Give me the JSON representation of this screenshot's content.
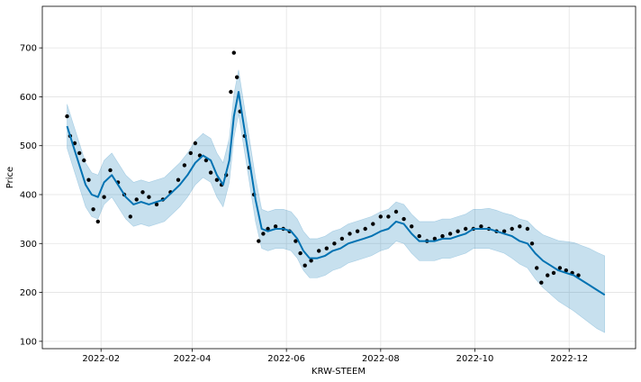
{
  "chart_data": {
    "type": "line",
    "title": "",
    "xlabel": "KRW-STEEM",
    "ylabel": "Price",
    "x_tick_labels": [
      "2022-02",
      "2022-04",
      "2022-06",
      "2022-08",
      "2022-10",
      "2022-12"
    ],
    "x_ticks": [
      "2022-02-01",
      "2022-04-01",
      "2022-06-01",
      "2022-08-01",
      "2022-10-01",
      "2022-12-01"
    ],
    "xlim": [
      "2021-12-25",
      "2023-01-13"
    ],
    "y_ticks": [
      100,
      200,
      300,
      400,
      500,
      600,
      700
    ],
    "ylim": [
      85,
      785
    ],
    "grid": true,
    "colors": {
      "forecast": "#0072B2",
      "band": "#0072B2",
      "observed": "#000000"
    },
    "series": [
      {
        "kind": "observed_points",
        "x": [
          "2022-01-10",
          "2022-01-12",
          "2022-01-15",
          "2022-01-18",
          "2022-01-21",
          "2022-01-24",
          "2022-01-27",
          "2022-01-30",
          "2022-02-03",
          "2022-02-07",
          "2022-02-12",
          "2022-02-16",
          "2022-02-20",
          "2022-02-24",
          "2022-02-28",
          "2022-03-04",
          "2022-03-09",
          "2022-03-13",
          "2022-03-18",
          "2022-03-23",
          "2022-03-27",
          "2022-03-31",
          "2022-04-03",
          "2022-04-06",
          "2022-04-10",
          "2022-04-13",
          "2022-04-17",
          "2022-04-20",
          "2022-04-23",
          "2022-04-26",
          "2022-04-28",
          "2022-04-30",
          "2022-05-02",
          "2022-05-05",
          "2022-05-08",
          "2022-05-11",
          "2022-05-14",
          "2022-05-17",
          "2022-05-20",
          "2022-05-25",
          "2022-05-30",
          "2022-06-03",
          "2022-06-07",
          "2022-06-10",
          "2022-06-13",
          "2022-06-17",
          "2022-06-22",
          "2022-06-27",
          "2022-07-02",
          "2022-07-07",
          "2022-07-12",
          "2022-07-17",
          "2022-07-22",
          "2022-07-27",
          "2022-08-01",
          "2022-08-06",
          "2022-08-11",
          "2022-08-16",
          "2022-08-21",
          "2022-08-26",
          "2022-08-31",
          "2022-09-05",
          "2022-09-10",
          "2022-09-15",
          "2022-09-20",
          "2022-09-25",
          "2022-09-30",
          "2022-10-05",
          "2022-10-10",
          "2022-10-15",
          "2022-10-20",
          "2022-10-25",
          "2022-10-30",
          "2022-11-04",
          "2022-11-07",
          "2022-11-10",
          "2022-11-13",
          "2022-11-17",
          "2022-11-21",
          "2022-11-25",
          "2022-11-29",
          "2022-12-03",
          "2022-12-07"
        ],
        "y": [
          560,
          520,
          505,
          485,
          470,
          430,
          370,
          345,
          395,
          450,
          425,
          400,
          355,
          390,
          405,
          395,
          380,
          390,
          405,
          430,
          460,
          485,
          505,
          480,
          470,
          445,
          430,
          420,
          440,
          610,
          690,
          640,
          570,
          520,
          455,
          400,
          305,
          320,
          330,
          335,
          330,
          325,
          305,
          280,
          255,
          265,
          285,
          290,
          300,
          310,
          320,
          325,
          330,
          340,
          355,
          355,
          365,
          350,
          335,
          315,
          305,
          310,
          315,
          320,
          325,
          330,
          330,
          335,
          330,
          325,
          325,
          330,
          335,
          330,
          300,
          250,
          220,
          235,
          240,
          250,
          245,
          240,
          235
        ]
      },
      {
        "kind": "forecast_line",
        "x": [
          "2022-01-10",
          "2022-01-14",
          "2022-01-18",
          "2022-01-22",
          "2022-01-26",
          "2022-01-30",
          "2022-02-03",
          "2022-02-08",
          "2022-02-12",
          "2022-02-17",
          "2022-02-22",
          "2022-02-27",
          "2022-03-04",
          "2022-03-09",
          "2022-03-14",
          "2022-03-19",
          "2022-03-24",
          "2022-03-29",
          "2022-04-03",
          "2022-04-08",
          "2022-04-13",
          "2022-04-17",
          "2022-04-21",
          "2022-04-25",
          "2022-04-28",
          "2022-05-01",
          "2022-05-04",
          "2022-05-08",
          "2022-05-12",
          "2022-05-16",
          "2022-05-20",
          "2022-05-25",
          "2022-05-30",
          "2022-06-04",
          "2022-06-08",
          "2022-06-12",
          "2022-06-16",
          "2022-06-21",
          "2022-06-26",
          "2022-07-01",
          "2022-07-06",
          "2022-07-11",
          "2022-07-16",
          "2022-07-21",
          "2022-07-26",
          "2022-08-01",
          "2022-08-06",
          "2022-08-11",
          "2022-08-16",
          "2022-08-21",
          "2022-08-26",
          "2022-08-31",
          "2022-09-05",
          "2022-09-10",
          "2022-09-15",
          "2022-09-20",
          "2022-09-25",
          "2022-09-30",
          "2022-10-05",
          "2022-10-10",
          "2022-10-15",
          "2022-10-20",
          "2022-10-25",
          "2022-10-30",
          "2022-11-04",
          "2022-11-09",
          "2022-11-14",
          "2022-11-19",
          "2022-11-24",
          "2022-11-29",
          "2022-12-04",
          "2022-12-09",
          "2022-12-14",
          "2022-12-19",
          "2022-12-24"
        ],
        "y": [
          540,
          500,
          460,
          420,
          400,
          395,
          425,
          440,
          420,
          395,
          380,
          385,
          380,
          385,
          390,
          405,
          420,
          440,
          465,
          480,
          470,
          440,
          420,
          470,
          560,
          610,
          550,
          470,
          390,
          330,
          325,
          330,
          330,
          325,
          310,
          285,
          270,
          270,
          275,
          285,
          290,
          300,
          305,
          310,
          315,
          325,
          330,
          345,
          340,
          320,
          305,
          305,
          305,
          310,
          310,
          315,
          320,
          330,
          330,
          330,
          325,
          320,
          315,
          305,
          300,
          280,
          265,
          255,
          245,
          240,
          235,
          225,
          215,
          205,
          195
        ],
        "lower": [
          495,
          455,
          415,
          375,
          355,
          350,
          380,
          395,
          375,
          350,
          335,
          340,
          335,
          340,
          345,
          360,
          375,
          395,
          420,
          435,
          425,
          395,
          375,
          425,
          515,
          565,
          505,
          425,
          345,
          290,
          285,
          290,
          290,
          285,
          270,
          245,
          230,
          230,
          235,
          245,
          250,
          260,
          265,
          270,
          275,
          285,
          290,
          305,
          300,
          280,
          265,
          265,
          265,
          270,
          270,
          275,
          280,
          290,
          290,
          290,
          285,
          280,
          270,
          258,
          250,
          228,
          210,
          196,
          182,
          172,
          162,
          150,
          138,
          126,
          118
        ],
        "upper": [
          585,
          545,
          505,
          465,
          445,
          440,
          470,
          485,
          465,
          440,
          425,
          430,
          425,
          430,
          435,
          450,
          465,
          485,
          510,
          525,
          515,
          485,
          465,
          515,
          605,
          655,
          595,
          515,
          435,
          370,
          365,
          370,
          370,
          365,
          350,
          325,
          310,
          310,
          315,
          325,
          330,
          340,
          345,
          350,
          355,
          365,
          370,
          385,
          380,
          360,
          345,
          345,
          345,
          350,
          350,
          355,
          360,
          370,
          370,
          372,
          368,
          362,
          358,
          350,
          346,
          330,
          318,
          312,
          306,
          304,
          302,
          296,
          290,
          282,
          275
        ]
      }
    ]
  }
}
